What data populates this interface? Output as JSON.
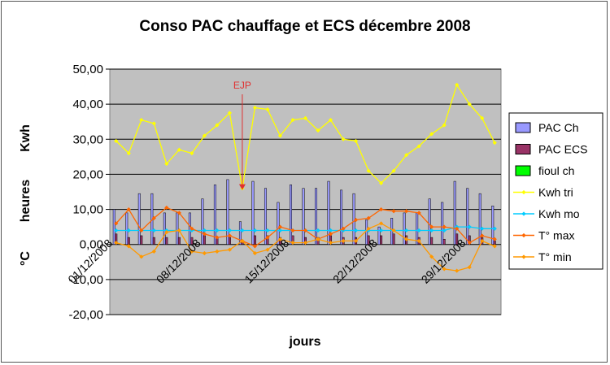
{
  "chart_data": {
    "type": "bar",
    "title": "Conso PAC chauffage et ECS décembre 2008",
    "ylabel": [
      "°C",
      "heures",
      "Kwh"
    ],
    "xlabel": "jours",
    "ylim": [
      -20,
      50
    ],
    "yticks": [
      "-20,00",
      "-10,00",
      "0,00",
      "10,00",
      "20,00",
      "30,00",
      "40,00",
      "50,00"
    ],
    "ytick_values": [
      -20,
      -10,
      0,
      10,
      20,
      30,
      40,
      50
    ],
    "categories": [
      "01/12/2008",
      "02/12/2008",
      "03/12/2008",
      "04/12/2008",
      "05/12/2008",
      "06/12/2008",
      "07/12/2008",
      "08/12/2008",
      "09/12/2008",
      "10/12/2008",
      "11/12/2008",
      "12/12/2008",
      "13/12/2008",
      "14/12/2008",
      "15/12/2008",
      "16/12/2008",
      "17/12/2008",
      "18/12/2008",
      "19/12/2008",
      "20/12/2008",
      "21/12/2008",
      "22/12/2008",
      "23/12/2008",
      "24/12/2008",
      "25/12/2008",
      "26/12/2008",
      "27/12/2008",
      "28/12/2008",
      "29/12/2008",
      "30/12/2008",
      "31/12/2008"
    ],
    "xtick_labels": [
      "01/12/2008",
      "08/12/2008",
      "15/12/2008",
      "22/12/2008",
      "29/12/2008"
    ],
    "xtick_indices": [
      0,
      7,
      14,
      21,
      28
    ],
    "grid": true,
    "legend_position": "right",
    "series": [
      {
        "name": "PAC Ch",
        "kind": "bar",
        "color": "#9999ff",
        "values": [
          10.0,
          9.0,
          14.5,
          14.5,
          9.0,
          9.0,
          9.0,
          13.0,
          17.0,
          18.5,
          6.5,
          18.0,
          16.0,
          12.0,
          17.0,
          16.0,
          16.0,
          18.0,
          15.5,
          14.5,
          7.0,
          5.0,
          7.5,
          9.0,
          9.0,
          13.0,
          12.0,
          18.0,
          16.0,
          14.5,
          11.0
        ]
      },
      {
        "name": "PAC ECS",
        "kind": "bar",
        "color": "#993366",
        "values": [
          3.0,
          2.0,
          2.5,
          2.0,
          2.0,
          2.0,
          2.0,
          2.5,
          2.0,
          2.0,
          1.0,
          2.5,
          2.5,
          2.0,
          2.5,
          2.0,
          2.0,
          2.5,
          2.0,
          2.0,
          2.5,
          2.5,
          3.0,
          2.5,
          2.0,
          2.0,
          1.5,
          3.0,
          2.5,
          2.0,
          1.0
        ]
      },
      {
        "name": "fioul ch",
        "kind": "bar",
        "color": "#00ff00",
        "values": [
          0,
          0,
          0,
          0,
          0,
          0,
          0,
          0,
          0,
          0,
          0,
          0,
          0,
          0,
          0,
          0,
          0,
          0,
          0,
          0,
          0,
          0,
          0,
          0,
          0,
          0,
          0,
          0,
          0,
          0,
          0
        ]
      },
      {
        "name": "Kwh tri",
        "kind": "line",
        "color": "#ffff00",
        "values": [
          29.5,
          26.0,
          35.5,
          34.5,
          23.0,
          27.0,
          26.0,
          31.0,
          34.0,
          37.5,
          16.0,
          39.0,
          38.5,
          31.0,
          35.5,
          36.0,
          32.5,
          35.5,
          30.0,
          29.5,
          21.0,
          17.5,
          21.0,
          25.5,
          28.0,
          31.5,
          34.0,
          45.5,
          40.0,
          36.0,
          29.0
        ]
      },
      {
        "name": "Kwh mo",
        "kind": "line",
        "color": "#00ccff",
        "values": [
          4.0,
          4.0,
          4.0,
          4.0,
          4.0,
          4.0,
          4.0,
          4.0,
          4.0,
          4.0,
          4.0,
          4.0,
          4.0,
          4.0,
          4.0,
          4.0,
          4.0,
          4.0,
          4.0,
          4.0,
          4.0,
          4.0,
          4.0,
          4.0,
          4.0,
          4.0,
          4.0,
          5.0,
          5.0,
          4.5,
          4.5
        ]
      },
      {
        "name": "T° max",
        "kind": "line",
        "color": "#ff6600",
        "values": [
          6.0,
          10.0,
          4.0,
          7.5,
          10.5,
          9.0,
          4.5,
          3.0,
          2.0,
          2.5,
          1.0,
          -0.5,
          2.0,
          5.0,
          4.0,
          4.0,
          1.5,
          3.0,
          4.5,
          7.0,
          7.5,
          10.0,
          9.5,
          9.5,
          9.0,
          5.0,
          5.0,
          4.5,
          0.5,
          2.5,
          1.5
        ]
      },
      {
        "name": "T° min",
        "kind": "line",
        "color": "#ff9900",
        "values": [
          0.5,
          -0.5,
          -3.5,
          -2.0,
          3.5,
          4.0,
          -2.0,
          -2.5,
          -2.0,
          -1.5,
          1.0,
          -2.5,
          -1.5,
          1.5,
          0.5,
          0.5,
          1.5,
          0.5,
          1.0,
          1.0,
          4.5,
          6.0,
          4.0,
          1.5,
          1.0,
          -3.5,
          -7.0,
          -7.5,
          -6.5,
          1.0,
          -0.5
        ]
      }
    ],
    "annotations": [
      {
        "text": "EJP",
        "category_index": 10
      }
    ]
  },
  "legend": {
    "items": [
      {
        "label": "PAC Ch",
        "kind": "bar",
        "color": "#9999ff"
      },
      {
        "label": "PAC ECS",
        "kind": "bar",
        "color": "#993366"
      },
      {
        "label": "fioul ch",
        "kind": "bar",
        "color": "#00ff00"
      },
      {
        "label": "Kwh tri",
        "kind": "line",
        "color": "#ffff00"
      },
      {
        "label": "Kwh mo",
        "kind": "line",
        "color": "#00ccff"
      },
      {
        "label": "T° max",
        "kind": "line",
        "color": "#ff6600"
      },
      {
        "label": "T° min",
        "kind": "line",
        "color": "#ff9900"
      }
    ]
  }
}
